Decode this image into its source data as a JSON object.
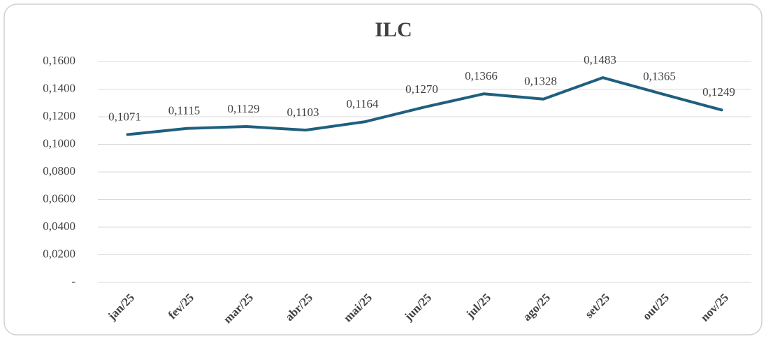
{
  "chart_data": {
    "type": "line",
    "title": "ILC",
    "categories": [
      "jan/25",
      "fev/25",
      "mar/25",
      "abr/25",
      "mai/25",
      "jun/25",
      "jul/25",
      "ago/25",
      "set/25",
      "out/25",
      "nov/25"
    ],
    "values": [
      0.1071,
      0.1115,
      0.1129,
      0.1103,
      0.1164,
      0.127,
      0.1366,
      0.1328,
      0.1483,
      0.1365,
      0.1249
    ],
    "value_labels": [
      "0,1071",
      "0,1115",
      "0,1129",
      "0,1103",
      "0,1164",
      "0,1270",
      "0,1366",
      "0,1328",
      "0,1483",
      "0,1365",
      "0,1249"
    ],
    "color": "#1f5f7f",
    "ylim": [
      0,
      0.16
    ],
    "yticks": [
      {
        "value": 0,
        "label": "-"
      },
      {
        "value": 0.02,
        "label": "0,0200"
      },
      {
        "value": 0.04,
        "label": "0,0400"
      },
      {
        "value": 0.06,
        "label": "0,0600"
      },
      {
        "value": 0.08,
        "label": "0,0800"
      },
      {
        "value": 0.1,
        "label": "0,1000"
      },
      {
        "value": 0.12,
        "label": "0,1200"
      },
      {
        "value": 0.14,
        "label": "0,1400"
      },
      {
        "value": 0.16,
        "label": "0,1600"
      }
    ],
    "grid": true
  }
}
